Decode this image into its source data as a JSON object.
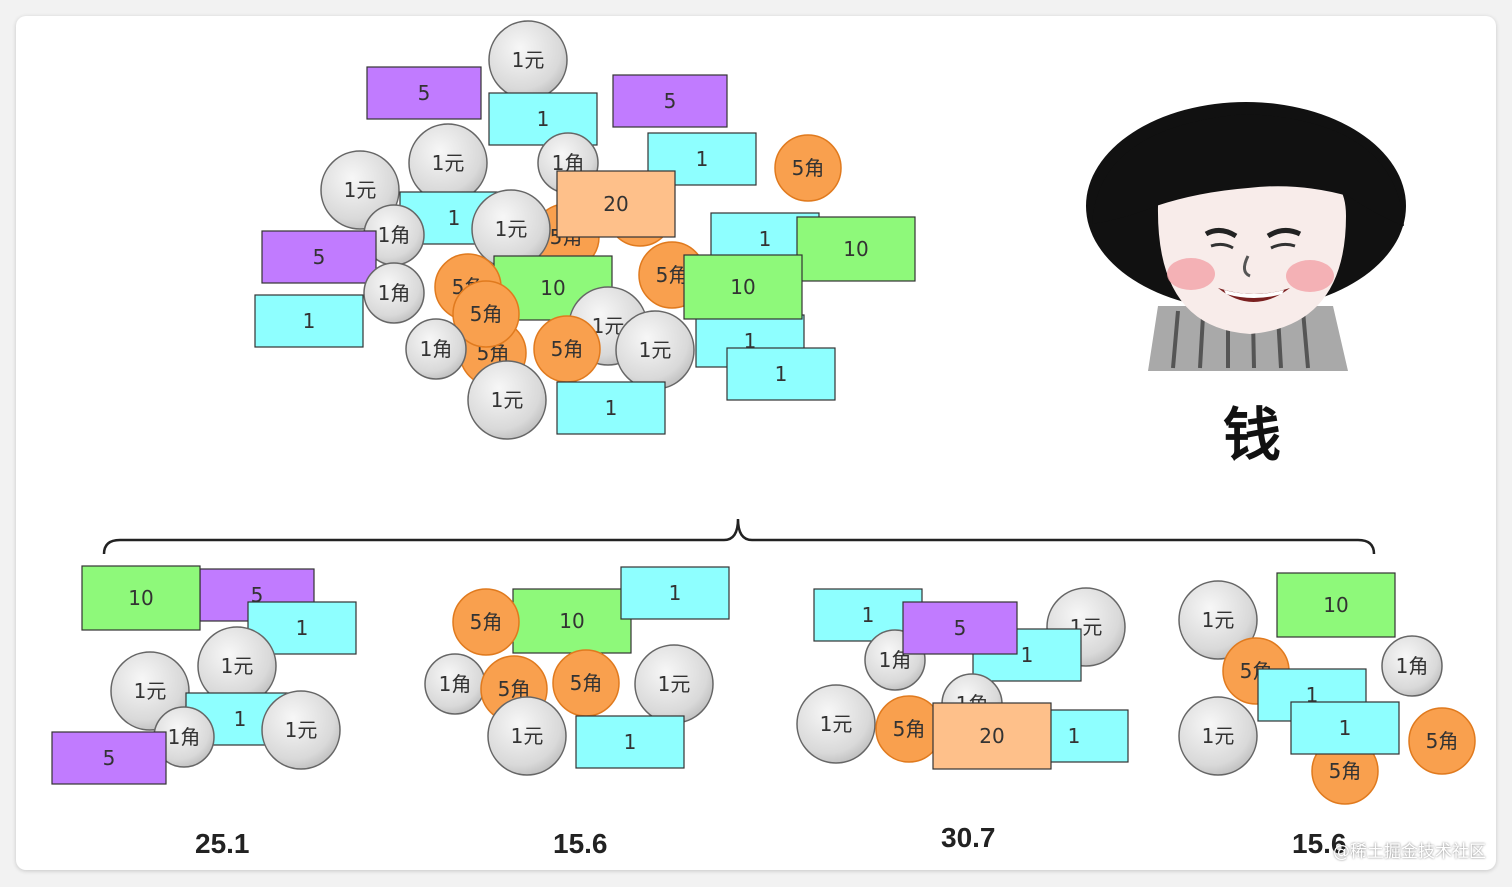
{
  "labels": {
    "yuan_coin": "1元",
    "jiao_coin": "1角",
    "five_jiao_coin": "5角",
    "note_1": "1",
    "note_5": "5",
    "note_10": "10",
    "note_20": "20"
  },
  "colors": {
    "silver_coin": "#e3e3e3",
    "orange_coin": "#f9a04e",
    "note_1": "#8effff",
    "note_5": "#c17bff",
    "note_10": "#8ef97a",
    "note_20": "#fec08a"
  },
  "meme": {
    "caption": "钱",
    "icon": "mushroom-head-face-icon"
  },
  "groups": [
    {
      "total": "25.1"
    },
    {
      "total": "15.6"
    },
    {
      "total": "30.7"
    },
    {
      "total": "15.6"
    }
  ],
  "watermark": "@稀土掘金技术社区"
}
